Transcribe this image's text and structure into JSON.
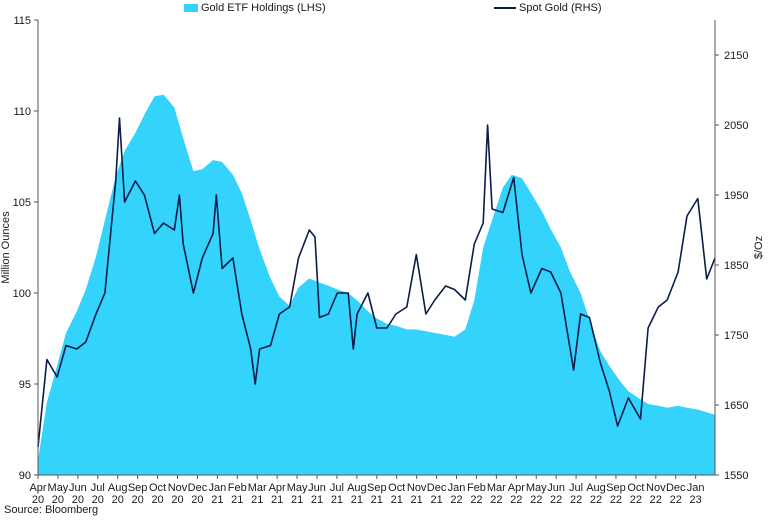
{
  "chart_data": {
    "type": "area",
    "source": "Source: Bloomberg",
    "colors": {
      "holdings": "#33d3fb",
      "spot": "#0b1d4a"
    },
    "legend": [
      {
        "name": "Gold ETF Holdings (LHS)",
        "kind": "area"
      },
      {
        "name": "Spot Gold (RHS)",
        "kind": "line"
      }
    ],
    "legend_position": "top",
    "ylabel_left": "Million Ounces",
    "ylabel_right": "$/Oz",
    "ylim_left": [
      90,
      115
    ],
    "yticks_left": [
      90,
      95,
      100,
      105,
      110,
      115
    ],
    "ylim_right": [
      1550,
      2200
    ],
    "yticks_right": [
      1550,
      1650,
      1750,
      1850,
      1950,
      2050,
      2150
    ],
    "grid": false,
    "x_tick_labels": [
      [
        "Apr",
        "20"
      ],
      [
        "May",
        "20"
      ],
      [
        "Jun",
        "20"
      ],
      [
        "Jul",
        "20"
      ],
      [
        "Aug",
        "20"
      ],
      [
        "Sep",
        "20"
      ],
      [
        "Oct",
        "20"
      ],
      [
        "Nov",
        "20"
      ],
      [
        "Dec",
        "20"
      ],
      [
        "Jan",
        "21"
      ],
      [
        "Feb",
        "21"
      ],
      [
        "Mar",
        "21"
      ],
      [
        "Apr",
        "21"
      ],
      [
        "May",
        "21"
      ],
      [
        "Jun",
        "21"
      ],
      [
        "Jul",
        "21"
      ],
      [
        "Aug",
        "21"
      ],
      [
        "Sep",
        "21"
      ],
      [
        "Oct",
        "21"
      ],
      [
        "Nov",
        "21"
      ],
      [
        "Dec",
        "21"
      ],
      [
        "Jan",
        "22"
      ],
      [
        "Feb",
        "22"
      ],
      [
        "Mar",
        "22"
      ],
      [
        "Apr",
        "22"
      ],
      [
        "May",
        "22"
      ],
      [
        "Jun",
        "22"
      ],
      [
        "Jul",
        "22"
      ],
      [
        "Aug",
        "22"
      ],
      [
        "Sep",
        "22"
      ],
      [
        "Oct",
        "22"
      ],
      [
        "Nov",
        "22"
      ],
      [
        "Dec",
        "22"
      ],
      [
        "Jan",
        "23"
      ]
    ],
    "x_start": "2020-04-01",
    "x_end": "2023-02-28",
    "series": [
      {
        "name": "Gold ETF Holdings (LHS)",
        "axis": "left",
        "dates": [
          "2020-04-01",
          "2020-04-15",
          "2020-05-01",
          "2020-05-15",
          "2020-06-01",
          "2020-06-15",
          "2020-07-01",
          "2020-07-15",
          "2020-08-01",
          "2020-08-15",
          "2020-09-01",
          "2020-09-15",
          "2020-10-01",
          "2020-10-15",
          "2020-11-01",
          "2020-11-15",
          "2020-12-01",
          "2020-12-15",
          "2021-01-01",
          "2021-01-15",
          "2021-02-01",
          "2021-02-15",
          "2021-03-01",
          "2021-03-15",
          "2021-04-01",
          "2021-04-15",
          "2021-05-01",
          "2021-05-15",
          "2021-06-01",
          "2021-06-15",
          "2021-07-01",
          "2021-07-15",
          "2021-08-01",
          "2021-08-15",
          "2021-09-01",
          "2021-09-15",
          "2021-10-01",
          "2021-10-15",
          "2021-11-01",
          "2021-11-15",
          "2021-12-01",
          "2021-12-15",
          "2022-01-01",
          "2022-01-15",
          "2022-02-01",
          "2022-02-15",
          "2022-03-01",
          "2022-03-15",
          "2022-04-01",
          "2022-04-15",
          "2022-05-01",
          "2022-05-15",
          "2022-06-01",
          "2022-06-15",
          "2022-07-01",
          "2022-07-15",
          "2022-08-01",
          "2022-08-15",
          "2022-09-01",
          "2022-09-15",
          "2022-10-01",
          "2022-10-15",
          "2022-11-01",
          "2022-11-15",
          "2022-12-01",
          "2022-12-15",
          "2023-01-01",
          "2023-01-15",
          "2023-02-01",
          "2023-02-28"
        ],
        "values": [
          90.8,
          94.0,
          96.0,
          97.8,
          99.0,
          100.2,
          102.0,
          104.0,
          106.4,
          107.8,
          108.8,
          109.8,
          110.8,
          110.9,
          110.2,
          108.5,
          106.7,
          106.8,
          107.3,
          107.2,
          106.5,
          105.5,
          104.0,
          102.4,
          100.8,
          99.8,
          99.3,
          100.3,
          100.8,
          100.6,
          100.4,
          100.2,
          100.0,
          99.6,
          99.0,
          98.6,
          98.3,
          98.2,
          98.0,
          98.0,
          97.9,
          97.8,
          97.7,
          97.6,
          98.0,
          99.6,
          102.5,
          104.0,
          105.8,
          106.5,
          106.3,
          105.5,
          104.5,
          103.5,
          102.5,
          101.2,
          100.0,
          98.5,
          96.8,
          96.0,
          95.2,
          94.6,
          94.2,
          93.9,
          93.8,
          93.7,
          93.8,
          93.7,
          93.6,
          93.3
        ]
      },
      {
        "name": "Spot Gold (RHS)",
        "axis": "right",
        "dates": [
          "2020-04-01",
          "2020-04-15",
          "2020-05-01",
          "2020-05-15",
          "2020-06-01",
          "2020-06-15",
          "2020-07-01",
          "2020-07-15",
          "2020-08-01",
          "2020-08-07",
          "2020-08-15",
          "2020-09-01",
          "2020-09-15",
          "2020-10-01",
          "2020-10-15",
          "2020-11-01",
          "2020-11-09",
          "2020-11-15",
          "2020-12-01",
          "2020-12-15",
          "2021-01-01",
          "2021-01-06",
          "2021-01-15",
          "2021-02-01",
          "2021-02-15",
          "2021-03-01",
          "2021-03-08",
          "2021-03-15",
          "2021-04-01",
          "2021-04-15",
          "2021-05-01",
          "2021-05-15",
          "2021-06-01",
          "2021-06-10",
          "2021-06-17",
          "2021-07-01",
          "2021-07-15",
          "2021-08-01",
          "2021-08-09",
          "2021-08-15",
          "2021-09-01",
          "2021-09-15",
          "2021-10-01",
          "2021-10-15",
          "2021-11-01",
          "2021-11-16",
          "2021-12-01",
          "2021-12-15",
          "2022-01-01",
          "2022-01-15",
          "2022-02-01",
          "2022-02-15",
          "2022-03-01",
          "2022-03-08",
          "2022-03-15",
          "2022-04-01",
          "2022-04-18",
          "2022-05-01",
          "2022-05-15",
          "2022-06-01",
          "2022-06-15",
          "2022-07-01",
          "2022-07-21",
          "2022-08-01",
          "2022-08-15",
          "2022-09-01",
          "2022-09-15",
          "2022-09-28",
          "2022-10-15",
          "2022-11-03",
          "2022-11-15",
          "2022-12-01",
          "2022-12-15",
          "2023-01-01",
          "2023-01-15",
          "2023-02-01",
          "2023-02-15",
          "2023-02-28"
        ],
        "values": [
          1590,
          1715,
          1690,
          1735,
          1730,
          1740,
          1780,
          1810,
          1970,
          2060,
          1940,
          1970,
          1950,
          1895,
          1910,
          1900,
          1950,
          1880,
          1810,
          1860,
          1895,
          1950,
          1845,
          1860,
          1780,
          1730,
          1680,
          1730,
          1735,
          1780,
          1790,
          1860,
          1900,
          1890,
          1775,
          1780,
          1810,
          1810,
          1730,
          1780,
          1810,
          1760,
          1760,
          1780,
          1790,
          1865,
          1780,
          1800,
          1820,
          1815,
          1800,
          1880,
          1910,
          2050,
          1930,
          1925,
          1975,
          1865,
          1810,
          1845,
          1840,
          1810,
          1700,
          1780,
          1775,
          1710,
          1670,
          1620,
          1660,
          1630,
          1760,
          1790,
          1800,
          1840,
          1920,
          1945,
          1830,
          1860
        ]
      }
    ]
  }
}
